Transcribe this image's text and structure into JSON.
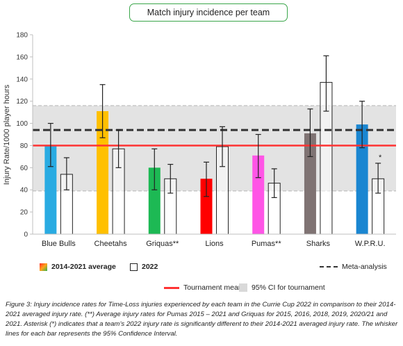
{
  "chart_data": {
    "type": "bar",
    "title": "Match injury incidence per team",
    "ylabel": "Injury Rate/1000 player hours",
    "ylim": [
      0,
      180
    ],
    "yticks": [
      0,
      20,
      40,
      60,
      80,
      100,
      120,
      140,
      160,
      180
    ],
    "categories": [
      "Blue Bulls",
      "Cheetahs",
      "Griquas**",
      "Lions",
      "Pumas**",
      "Sharks",
      "W.P.R.U."
    ],
    "series": [
      {
        "name": "2014-2021 average",
        "values": [
          80,
          111,
          60,
          50,
          71,
          91,
          99
        ],
        "ci_low": [
          61,
          87,
          40,
          34,
          51,
          70,
          78
        ],
        "ci_high": [
          100,
          135,
          77,
          65,
          90,
          113,
          120
        ],
        "colors": [
          "#29abe2",
          "#ffc000",
          "#1db954",
          "#ff0000",
          "#ff55e6",
          "#7f7373",
          "#1a86d1"
        ]
      },
      {
        "name": "2022",
        "values": [
          54,
          77,
          50,
          79,
          46,
          137,
          50
        ],
        "ci_low": [
          40,
          60,
          37,
          61,
          33,
          111,
          37
        ],
        "ci_high": [
          69,
          94,
          63,
          97,
          59,
          161,
          64
        ]
      }
    ],
    "tournament_mean": 80,
    "meta_analysis": 94,
    "ci_band": [
      39,
      116
    ],
    "significant": [
      6
    ],
    "significance_marker": "*",
    "grid": false
  },
  "legend": {
    "avg_label": "2014-2021 average",
    "y2022_label": "2022",
    "meta_label": "Meta-analysis",
    "mean_label": "Tournament mean",
    "ci_label": "95% CI for tournament"
  },
  "colors": {
    "tournament_mean": "#ff3333",
    "meta_analysis": "#333333",
    "ci_band": "#e3e3e3",
    "title_border": "#3aa64a"
  },
  "caption": "Figure 3: Injury incidence rates for Time-Loss injuries experienced by each team in the Currie Cup 2022 in comparison to their 2014-2021 averaged injury rate. (**) Average injury rates for Pumas 2015 – 2021 and Griquas for 2015, 2016, 2018, 2019, 2020/21 and 2021. Asterisk (*) indicates that a team’s 2022 injury rate is significantly different to their 2014-2021 averaged injury rate. The whisker lines for each bar represents the 95% Confidence Interval."
}
